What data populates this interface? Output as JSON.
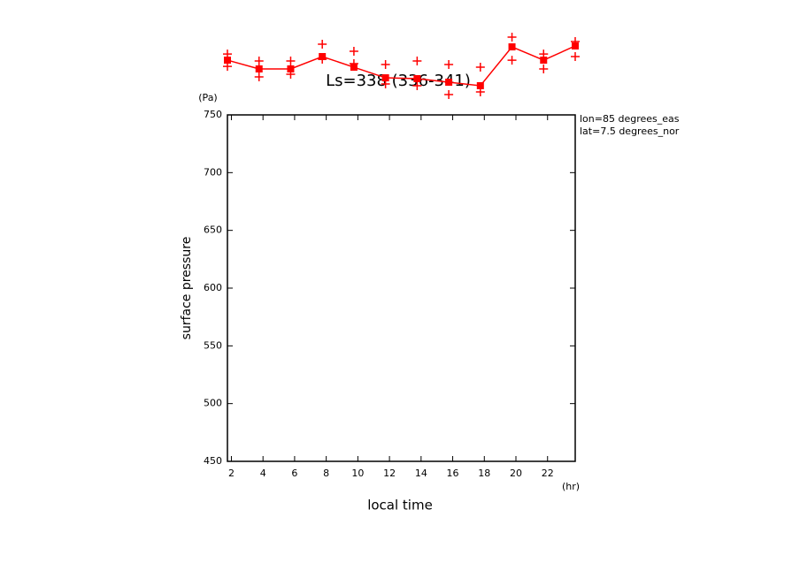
{
  "chart_data": {
    "type": "line",
    "title": "Ls=338 (336-341)",
    "ylabel": "surface pressure",
    "yunit": "(Pa)",
    "xlabel": "local time",
    "xunit": "(hr)",
    "annotations": [
      "lon=85 degrees_eas",
      "lat=7.5 degrees_nor"
    ],
    "x": [
      1.75,
      3.75,
      5.75,
      7.75,
      9.75,
      11.75,
      13.75,
      15.75,
      17.75,
      19.75,
      21.75,
      23.75
    ],
    "series": [
      {
        "color": "#ff0000",
        "values": [
          797.4,
          789.8,
          789.8,
          800.5,
          791.3,
          782.1,
          781.4,
          778.3,
          775.3,
          808.9,
          797.4,
          809.7
        ]
      }
    ],
    "samples": {
      "color": "#ff0000",
      "x": [
        1.75,
        1.75,
        3.75,
        3.75,
        5.75,
        5.75,
        7.75,
        7.75,
        9.75,
        9.75,
        11.75,
        11.75,
        13.75,
        13.75,
        15.75,
        15.75,
        17.75,
        17.75,
        19.75,
        19.75,
        21.75,
        21.75,
        23.75,
        23.75
      ],
      "values": [
        802.7,
        792.0,
        796.7,
        782.9,
        796.7,
        785.2,
        811.2,
        798.2,
        805.1,
        794.4,
        793.6,
        776.8,
        796.7,
        775.3,
        793.6,
        767.6,
        791.3,
        769.9,
        817.3,
        797.4,
        802.7,
        789.8,
        813.5,
        800.5
      ]
    },
    "xlim": [
      1.75,
      23.75
    ],
    "xticks": [
      2,
      4,
      6,
      8,
      10,
      12,
      14,
      16,
      18,
      20,
      22
    ],
    "ylim": [
      450,
      750
    ],
    "yticks": [
      450,
      500,
      550,
      600,
      650,
      700,
      750
    ]
  }
}
